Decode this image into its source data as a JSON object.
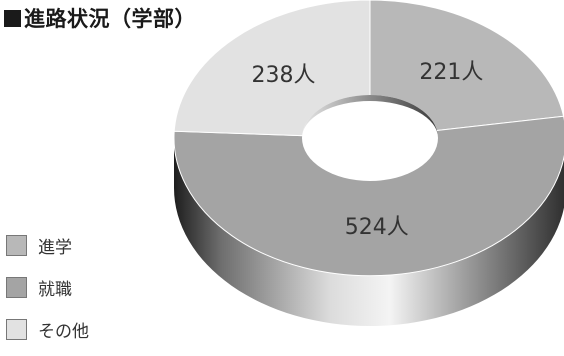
{
  "title": "進路状況（学部）",
  "chart_data": {
    "type": "pie",
    "variant": "donut-3d",
    "title": "進路状況（学部）",
    "slices": [
      {
        "name": "進学",
        "value": 221,
        "label": "221人",
        "color": "#b8b8b8"
      },
      {
        "name": "就職",
        "value": 524,
        "label": "524人",
        "color": "#a4a4a4"
      },
      {
        "name": "その他",
        "value": 238,
        "label": "238人",
        "color": "#e2e2e2"
      }
    ],
    "legend_position": "bottom-left",
    "unit": "人"
  }
}
